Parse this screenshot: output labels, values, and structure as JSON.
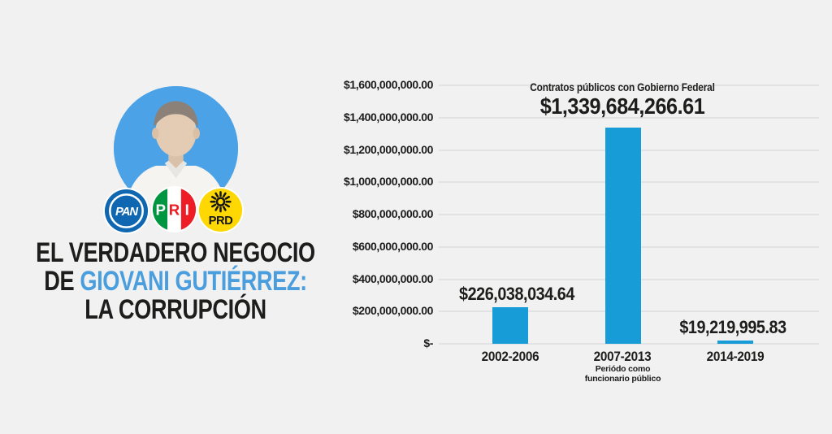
{
  "page": {
    "background": "#f1f1f2",
    "text_color": "#1d1d1b"
  },
  "left_panel": {
    "avatar": {
      "semantic": "portrait-giovani-gutierrez",
      "circle_color": "#4ba2e6"
    },
    "party_logos": [
      {
        "name": "pan-logo",
        "label": "PAN",
        "color": "#0f67b1"
      },
      {
        "name": "pri-logo",
        "label_p": "P",
        "label_r": "R",
        "label_i": "I",
        "colors": [
          "#009540",
          "#ffffff",
          "#ee1c25"
        ]
      },
      {
        "name": "prd-logo",
        "label": "PRD",
        "color": "#ffd703"
      }
    ],
    "headline": {
      "line1": "EL VERDADERO NEGOCIO",
      "line2_prefix": "DE ",
      "line2_highlight": "GIOVANI GUTIÉRREZ:",
      "line3": "LA CORRUPCIÓN",
      "highlight_color": "#4b9edd"
    }
  },
  "chart_data": {
    "type": "bar",
    "title": "Contratos públicos con Gobierno Federal",
    "categories": [
      "2002-2006",
      "2007-2013",
      "2014-2019"
    ],
    "values": [
      226038034.64,
      1339684266.61,
      19219995.83
    ],
    "value_labels": [
      "$226,038,034.64",
      "$1,339,684,266.61",
      "$19,219,995.83"
    ],
    "category_note": {
      "index": 1,
      "text": "Periódo como funcionario público"
    },
    "y_ticks_top_to_bottom": [
      "$1,600,000,000.00",
      "$1,400,000,000.00",
      "$1,200,000,000.00",
      "$1,000,000,000.00",
      "$800,000,000.00",
      "$600,000,000.00",
      "$400,000,000.00",
      "$200,000,000.00",
      "$-"
    ],
    "ylim": [
      0,
      1600000000
    ],
    "xlabel": "",
    "ylabel": "",
    "grid": true,
    "legend": false,
    "bar_color": "#189cd8"
  }
}
